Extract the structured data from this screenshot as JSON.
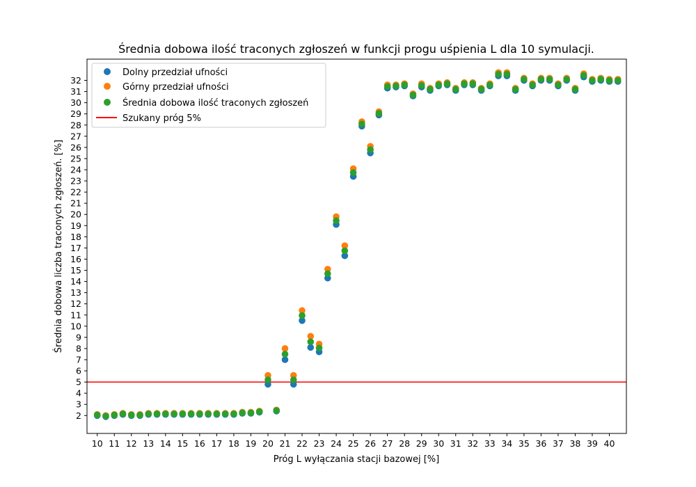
{
  "chart_data": {
    "type": "scatter",
    "title": "Średnia dobowa ilość traconych zgłoszeń w funkcji progu uśpienia L dla 10 symulacji.",
    "xlabel": "Próg L wyłączania stacji bazowej [%]",
    "ylabel": "Średnia dobowa liczba traconych zgłoszeń. [%]",
    "xlim": [
      9.4,
      41.0
    ],
    "ylim": [
      0.4,
      33.9
    ],
    "x_ticks": [
      10,
      11,
      12,
      13,
      14,
      15,
      16,
      17,
      18,
      19,
      20,
      21,
      22,
      23,
      24,
      25,
      26,
      27,
      28,
      29,
      30,
      31,
      32,
      33,
      34,
      35,
      36,
      37,
      38,
      39,
      40
    ],
    "y_ticks": [
      2,
      3,
      4,
      5,
      6,
      7,
      8,
      9,
      10,
      11,
      12,
      13,
      14,
      15,
      16,
      17,
      18,
      19,
      20,
      21,
      22,
      23,
      24,
      25,
      26,
      27,
      28,
      29,
      30,
      31,
      32
    ],
    "grid": false,
    "legend_position": "top-left",
    "x": [
      10,
      10.5,
      11,
      11.5,
      12,
      12.5,
      13,
      13.5,
      14,
      14.5,
      15,
      15.5,
      16,
      16.5,
      17,
      17.5,
      18,
      18.5,
      19,
      19.5,
      20,
      20.5,
      21,
      21.5,
      22,
      22.5,
      23,
      23.5,
      24,
      24.5,
      25,
      25.5,
      26,
      26.5,
      27,
      27.5,
      28,
      28.5,
      29,
      29.5,
      30,
      30.5,
      31,
      31.5,
      32,
      32.5,
      33,
      33.5,
      34,
      34.5,
      35,
      35.5,
      36,
      36.5,
      37,
      37.5,
      38,
      38.5,
      39,
      39.5,
      40,
      40.5
    ],
    "series": [
      {
        "name": "Dolny przedział ufności",
        "color": "#1f77b4",
        "values": [
          2.0,
          1.9,
          2.0,
          2.1,
          2.0,
          2.0,
          2.1,
          2.1,
          2.1,
          2.1,
          2.1,
          2.1,
          2.1,
          2.1,
          2.1,
          2.1,
          2.1,
          2.2,
          2.2,
          2.3,
          4.8,
          2.4,
          7.0,
          4.8,
          10.5,
          8.1,
          7.7,
          14.3,
          19.1,
          16.3,
          23.4,
          27.9,
          25.5,
          28.9,
          31.3,
          31.4,
          31.5,
          30.6,
          31.4,
          31.1,
          31.5,
          31.6,
          31.1,
          31.6,
          31.6,
          31.1,
          31.5,
          32.4,
          32.4,
          31.1,
          32.0,
          31.5,
          32.0,
          32.0,
          31.5,
          32.0,
          31.1,
          32.3,
          31.9,
          32.0,
          31.9,
          31.9
        ]
      },
      {
        "name": "Górny przedział ufności",
        "color": "#ff7f0e",
        "values": [
          2.1,
          2.0,
          2.1,
          2.2,
          2.1,
          2.1,
          2.2,
          2.2,
          2.2,
          2.2,
          2.2,
          2.2,
          2.2,
          2.2,
          2.2,
          2.2,
          2.2,
          2.3,
          2.3,
          2.4,
          5.6,
          2.5,
          8.0,
          5.6,
          11.4,
          9.1,
          8.4,
          15.1,
          19.8,
          17.2,
          24.1,
          28.3,
          26.1,
          29.2,
          31.6,
          31.6,
          31.7,
          30.8,
          31.7,
          31.3,
          31.7,
          31.8,
          31.3,
          31.8,
          31.8,
          31.3,
          31.7,
          32.7,
          32.7,
          31.3,
          32.2,
          31.7,
          32.2,
          32.2,
          31.7,
          32.2,
          31.3,
          32.6,
          32.1,
          32.2,
          32.1,
          32.1
        ]
      },
      {
        "name": "Średnia dobowa ilość traconych zgłoszeń",
        "color": "#2ca02c",
        "values": [
          2.05,
          1.95,
          2.05,
          2.15,
          2.05,
          2.05,
          2.15,
          2.15,
          2.15,
          2.15,
          2.15,
          2.15,
          2.15,
          2.15,
          2.15,
          2.15,
          2.15,
          2.25,
          2.25,
          2.35,
          5.2,
          2.45,
          7.5,
          5.2,
          10.95,
          8.6,
          8.05,
          14.7,
          19.45,
          16.75,
          23.75,
          28.1,
          25.8,
          29.05,
          31.45,
          31.5,
          31.6,
          30.7,
          31.55,
          31.2,
          31.6,
          31.7,
          31.2,
          31.7,
          31.7,
          31.2,
          31.6,
          32.55,
          32.55,
          31.2,
          32.1,
          31.6,
          32.1,
          32.1,
          31.6,
          32.1,
          31.2,
          32.45,
          32.0,
          32.1,
          32.0,
          32.0
        ]
      }
    ],
    "threshold": {
      "name": "Szukany próg 5%",
      "value": 5,
      "color": "#ff0000"
    }
  }
}
